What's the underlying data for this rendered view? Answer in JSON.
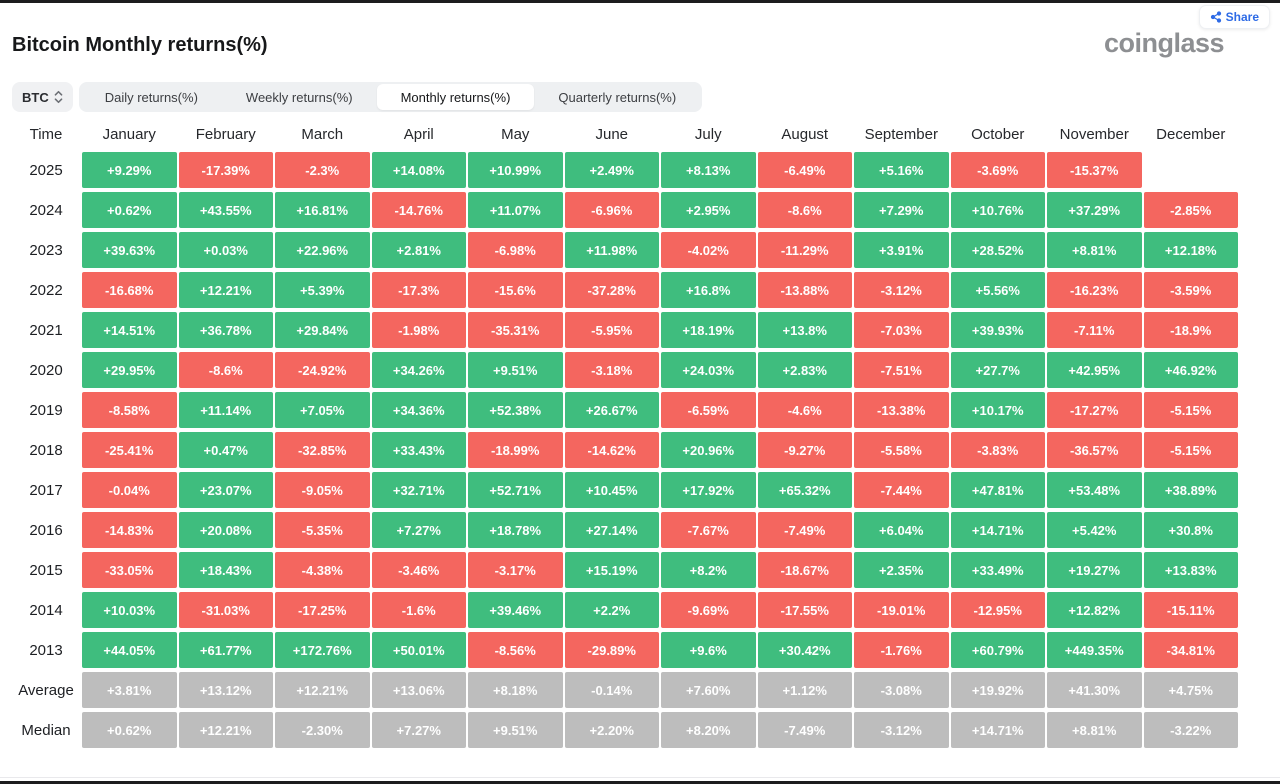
{
  "page": {
    "title": "Bitcoin Monthly returns(%)",
    "brand": "coinglass",
    "share_label": "Share"
  },
  "controls": {
    "symbol_selector": {
      "value": "BTC"
    },
    "tabs": [
      {
        "label": "Daily returns(%)",
        "active": false
      },
      {
        "label": "Weekly returns(%)",
        "active": false
      },
      {
        "label": "Monthly returns(%)",
        "active": true
      },
      {
        "label": "Quarterly returns(%)",
        "active": false
      }
    ]
  },
  "colors": {
    "positive": "#3fbd7e",
    "negative": "#f4665f",
    "neutral": "#bdbdbd",
    "accent_blue": "#2e6be6"
  },
  "chart_data": {
    "type": "heatmap",
    "title": "Bitcoin Monthly returns(%)",
    "time_header": "Time",
    "columns": [
      "January",
      "February",
      "March",
      "April",
      "May",
      "June",
      "July",
      "August",
      "September",
      "October",
      "November",
      "December"
    ],
    "rows": [
      {
        "label": "2025",
        "kind": "year",
        "values": [
          "+9.29%",
          "-17.39%",
          "-2.3%",
          "+14.08%",
          "+10.99%",
          "+2.49%",
          "+8.13%",
          "-6.49%",
          "+5.16%",
          "-3.69%",
          "-15.37%",
          null
        ]
      },
      {
        "label": "2024",
        "kind": "year",
        "values": [
          "+0.62%",
          "+43.55%",
          "+16.81%",
          "-14.76%",
          "+11.07%",
          "-6.96%",
          "+2.95%",
          "-8.6%",
          "+7.29%",
          "+10.76%",
          "+37.29%",
          "-2.85%"
        ]
      },
      {
        "label": "2023",
        "kind": "year",
        "values": [
          "+39.63%",
          "+0.03%",
          "+22.96%",
          "+2.81%",
          "-6.98%",
          "+11.98%",
          "-4.02%",
          "-11.29%",
          "+3.91%",
          "+28.52%",
          "+8.81%",
          "+12.18%"
        ]
      },
      {
        "label": "2022",
        "kind": "year",
        "values": [
          "-16.68%",
          "+12.21%",
          "+5.39%",
          "-17.3%",
          "-15.6%",
          "-37.28%",
          "+16.8%",
          "-13.88%",
          "-3.12%",
          "+5.56%",
          "-16.23%",
          "-3.59%"
        ]
      },
      {
        "label": "2021",
        "kind": "year",
        "values": [
          "+14.51%",
          "+36.78%",
          "+29.84%",
          "-1.98%",
          "-35.31%",
          "-5.95%",
          "+18.19%",
          "+13.8%",
          "-7.03%",
          "+39.93%",
          "-7.11%",
          "-18.9%"
        ]
      },
      {
        "label": "2020",
        "kind": "year",
        "values": [
          "+29.95%",
          "-8.6%",
          "-24.92%",
          "+34.26%",
          "+9.51%",
          "-3.18%",
          "+24.03%",
          "+2.83%",
          "-7.51%",
          "+27.7%",
          "+42.95%",
          "+46.92%"
        ]
      },
      {
        "label": "2019",
        "kind": "year",
        "values": [
          "-8.58%",
          "+11.14%",
          "+7.05%",
          "+34.36%",
          "+52.38%",
          "+26.67%",
          "-6.59%",
          "-4.6%",
          "-13.38%",
          "+10.17%",
          "-17.27%",
          "-5.15%"
        ]
      },
      {
        "label": "2018",
        "kind": "year",
        "values": [
          "-25.41%",
          "+0.47%",
          "-32.85%",
          "+33.43%",
          "-18.99%",
          "-14.62%",
          "+20.96%",
          "-9.27%",
          "-5.58%",
          "-3.83%",
          "-36.57%",
          "-5.15%"
        ]
      },
      {
        "label": "2017",
        "kind": "year",
        "values": [
          "-0.04%",
          "+23.07%",
          "-9.05%",
          "+32.71%",
          "+52.71%",
          "+10.45%",
          "+17.92%",
          "+65.32%",
          "-7.44%",
          "+47.81%",
          "+53.48%",
          "+38.89%"
        ]
      },
      {
        "label": "2016",
        "kind": "year",
        "values": [
          "-14.83%",
          "+20.08%",
          "-5.35%",
          "+7.27%",
          "+18.78%",
          "+27.14%",
          "-7.67%",
          "-7.49%",
          "+6.04%",
          "+14.71%",
          "+5.42%",
          "+30.8%"
        ]
      },
      {
        "label": "2015",
        "kind": "year",
        "values": [
          "-33.05%",
          "+18.43%",
          "-4.38%",
          "-3.46%",
          "-3.17%",
          "+15.19%",
          "+8.2%",
          "-18.67%",
          "+2.35%",
          "+33.49%",
          "+19.27%",
          "+13.83%"
        ]
      },
      {
        "label": "2014",
        "kind": "year",
        "values": [
          "+10.03%",
          "-31.03%",
          "-17.25%",
          "-1.6%",
          "+39.46%",
          "+2.2%",
          "-9.69%",
          "-17.55%",
          "-19.01%",
          "-12.95%",
          "+12.82%",
          "-15.11%"
        ]
      },
      {
        "label": "2013",
        "kind": "year",
        "values": [
          "+44.05%",
          "+61.77%",
          "+172.76%",
          "+50.01%",
          "-8.56%",
          "-29.89%",
          "+9.6%",
          "+30.42%",
          "-1.76%",
          "+60.79%",
          "+449.35%",
          "-34.81%"
        ]
      },
      {
        "label": "Average",
        "kind": "summary",
        "values": [
          "+3.81%",
          "+13.12%",
          "+12.21%",
          "+13.06%",
          "+8.18%",
          "-0.14%",
          "+7.60%",
          "+1.12%",
          "-3.08%",
          "+19.92%",
          "+41.30%",
          "+4.75%"
        ]
      },
      {
        "label": "Median",
        "kind": "summary",
        "values": [
          "+0.62%",
          "+12.21%",
          "-2.30%",
          "+7.27%",
          "+9.51%",
          "+2.20%",
          "+8.20%",
          "-7.49%",
          "-3.12%",
          "+14.71%",
          "+8.81%",
          "-3.22%"
        ]
      }
    ]
  }
}
